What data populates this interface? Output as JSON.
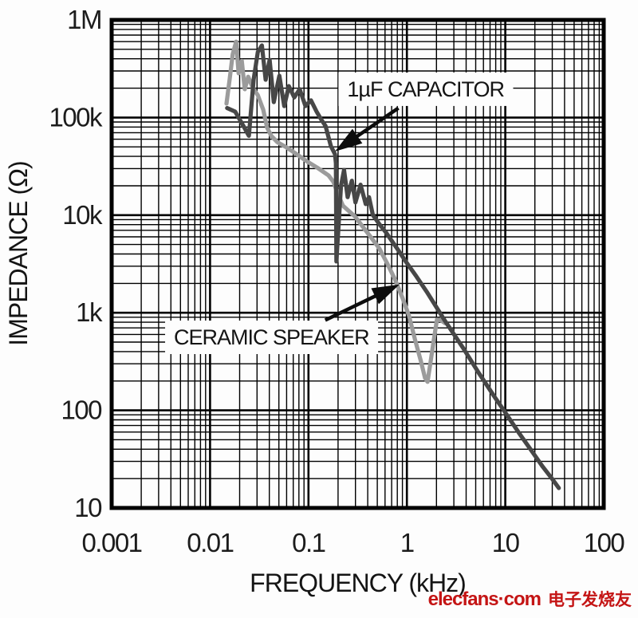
{
  "page": {
    "background": "#fdfdfd"
  },
  "watermark": {
    "brand": "elecfans·com",
    "cn": "电子发烧友",
    "color": "#c41414"
  },
  "chart_data": {
    "type": "line",
    "title": "",
    "xlabel": "FREQUENCY (kHz)",
    "ylabel": "IMPEDANCE (Ω)",
    "x_unit": "kHz",
    "y_unit": "Ω",
    "x_scale": "log",
    "y_scale": "log",
    "xlim": [
      0.001,
      100
    ],
    "ylim": [
      10,
      1000000
    ],
    "x_tick_labels": [
      "0.001",
      "0.01",
      "0.1",
      "1",
      "10",
      "100"
    ],
    "x_tick_values": [
      0.001,
      0.01,
      0.1,
      1,
      10,
      100
    ],
    "y_tick_labels": [
      "1M",
      "100k",
      "10k",
      "1k",
      "100",
      "10"
    ],
    "y_tick_values": [
      1000000,
      100000,
      10000,
      1000,
      100,
      10
    ],
    "grid": {
      "major": true,
      "minor": true,
      "color": "#000000"
    },
    "frame_color": "#000000",
    "legend_position": "none (labeled by arrows)",
    "series": [
      {
        "name": "1µF CAPACITOR",
        "color": "#474747",
        "points": [
          [
            0.0149,
            125000
          ],
          [
            0.018,
            115000
          ],
          [
            0.0218,
            82000
          ],
          [
            0.0248,
            65000
          ],
          [
            0.0277,
            244000
          ],
          [
            0.0306,
            470000
          ],
          [
            0.0336,
            548000
          ],
          [
            0.0367,
            244000
          ],
          [
            0.0403,
            390000
          ],
          [
            0.0444,
            144000
          ],
          [
            0.0506,
            268000
          ],
          [
            0.0567,
            131000
          ],
          [
            0.0632,
            210000
          ],
          [
            0.0718,
            161000
          ],
          [
            0.0815,
            195000
          ],
          [
            0.0932,
            131000
          ],
          [
            0.106,
            150000
          ],
          [
            0.121,
            115000
          ],
          [
            0.135,
            95000
          ],
          [
            0.149,
            82000
          ],
          [
            0.169,
            51000
          ],
          [
            0.186,
            42000
          ],
          [
            0.19,
            34000
          ],
          [
            0.192,
            3350
          ],
          [
            0.214,
            20000
          ],
          [
            0.23,
            29000
          ],
          [
            0.25,
            15300
          ],
          [
            0.276,
            22500
          ],
          [
            0.3,
            13500
          ],
          [
            0.338,
            20500
          ],
          [
            0.382,
            13000
          ],
          [
            0.412,
            15300
          ],
          [
            0.452,
            10000
          ],
          [
            0.524,
            8100
          ],
          [
            0.61,
            6700
          ],
          [
            0.79,
            4600
          ],
          [
            1.0,
            3230
          ],
          [
            1.25,
            2350
          ],
          [
            1.59,
            1640
          ],
          [
            2.45,
            820
          ],
          [
            3.7,
            440
          ],
          [
            5.4,
            240
          ],
          [
            7.8,
            137
          ],
          [
            10,
            95
          ],
          [
            13.7,
            59
          ],
          [
            18,
            40
          ],
          [
            24,
            26.5
          ],
          [
            30,
            19.8
          ],
          [
            35,
            16
          ]
        ]
      },
      {
        "name": "CERAMIC SPEAKER",
        "color": "#9b9b9b",
        "points": [
          [
            0.0147,
            139000
          ],
          [
            0.0158,
            245000
          ],
          [
            0.017,
            445000
          ],
          [
            0.0184,
            600000
          ],
          [
            0.0195,
            284000
          ],
          [
            0.021,
            380000
          ],
          [
            0.0225,
            195000
          ],
          [
            0.0244,
            262000
          ],
          [
            0.0273,
            200000
          ],
          [
            0.0305,
            170000
          ],
          [
            0.0347,
            120000
          ],
          [
            0.038,
            79000
          ],
          [
            0.0418,
            65000
          ],
          [
            0.0482,
            56000
          ],
          [
            0.0606,
            49000
          ],
          [
            0.0762,
            42000
          ],
          [
            0.0967,
            35500
          ],
          [
            0.123,
            30600
          ],
          [
            0.16,
            25500
          ],
          [
            0.179,
            22000
          ],
          [
            0.2,
            16300
          ],
          [
            0.224,
            12500
          ],
          [
            0.25,
            11300
          ],
          [
            0.297,
            9700
          ],
          [
            0.357,
            7600
          ],
          [
            0.428,
            6000
          ],
          [
            0.524,
            4560
          ],
          [
            0.628,
            3230
          ],
          [
            0.753,
            2220
          ],
          [
            0.904,
            1410
          ],
          [
            1.05,
            935
          ],
          [
            1.21,
            530
          ],
          [
            1.38,
            325
          ],
          [
            1.53,
            214
          ],
          [
            1.62,
            196
          ],
          [
            1.75,
            325
          ],
          [
            1.88,
            530
          ],
          [
            2.02,
            850
          ],
          [
            2.22,
            838
          ],
          [
            2.45,
            780
          ]
        ]
      }
    ],
    "annotations": [
      {
        "id": "capacitor",
        "text": "1µF CAPACITOR",
        "label_at": [
          1.55,
          195000
        ],
        "arrow_tail": [
          0.82,
          125000
        ],
        "arrow_tip": [
          0.186,
          45000
        ]
      },
      {
        "id": "speaker",
        "text": "CERAMIC SPEAKER",
        "label_at": [
          0.042,
          560
        ],
        "arrow_tail": [
          0.148,
          840
        ],
        "arrow_tip": [
          0.84,
          1950
        ]
      }
    ]
  }
}
